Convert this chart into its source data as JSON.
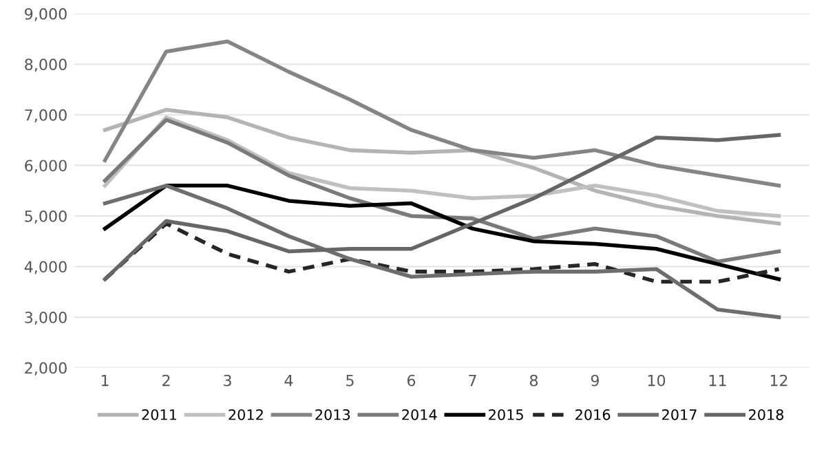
{
  "chart_data": {
    "type": "line",
    "x": [
      1,
      2,
      3,
      4,
      5,
      6,
      7,
      8,
      9,
      10,
      11,
      12
    ],
    "xlim": [
      0.5,
      12.5
    ],
    "xticks": [
      1,
      2,
      3,
      4,
      5,
      6,
      7,
      8,
      9,
      10,
      11,
      12
    ],
    "ylim": [
      2000,
      9000
    ],
    "yticks": [
      {
        "value": 2000,
        "label": "2,000"
      },
      {
        "value": 3000,
        "label": "3,000"
      },
      {
        "value": 4000,
        "label": "4,000"
      },
      {
        "value": 5000,
        "label": "5,000"
      },
      {
        "value": 6000,
        "label": "6,000"
      },
      {
        "value": 7000,
        "label": "7,000"
      },
      {
        "value": 8000,
        "label": "8,000"
      },
      {
        "value": 9000,
        "label": "9,000"
      }
    ],
    "grid": "y",
    "legend": "bottom",
    "marker": "none",
    "series": [
      {
        "name": "2011",
        "color": "#b4b4b4",
        "values": [
          6700,
          7100,
          6950,
          6550,
          6300,
          6250,
          6300,
          5950,
          5500,
          5200,
          5000,
          4850
        ]
      },
      {
        "name": "2012",
        "color": "#c0c0c0",
        "values": [
          5600,
          6950,
          6500,
          5850,
          5550,
          5500,
          5350,
          5400,
          5600,
          5400,
          5100,
          5000
        ]
      },
      {
        "name": "2013",
        "color": "#858585",
        "values": [
          6100,
          8250,
          8450,
          7850,
          7300,
          6700,
          6300,
          6150,
          6300,
          6000,
          5800,
          5600
        ]
      },
      {
        "name": "2014",
        "color": "#7a7a7a",
        "values": [
          5700,
          6900,
          6450,
          5800,
          5350,
          5000,
          4950,
          4550,
          4750,
          4600,
          4100,
          4300
        ]
      },
      {
        "name": "2015",
        "color": "#000000",
        "values": [
          4750,
          5600,
          5600,
          5300,
          5200,
          5250,
          4750,
          4500,
          4450,
          4350,
          4050,
          3750
        ]
      },
      {
        "name": "2016",
        "color": "#262626",
        "line_style": "dashed",
        "values": [
          3750,
          4850,
          4250,
          3900,
          4150,
          3900,
          3900,
          3950,
          4050,
          3700,
          3700,
          3950
        ]
      },
      {
        "name": "2017",
        "color": "#6e6e6e",
        "values": [
          5250,
          5600,
          5150,
          4600,
          4150,
          3800,
          3850,
          3900,
          3900,
          3950,
          3150,
          3000
        ]
      },
      {
        "name": "2018",
        "color": "#666666",
        "values": [
          3750,
          4900,
          4700,
          4300,
          4350,
          4350,
          4850,
          5350,
          5950,
          6550,
          6500,
          6600
        ]
      }
    ]
  }
}
